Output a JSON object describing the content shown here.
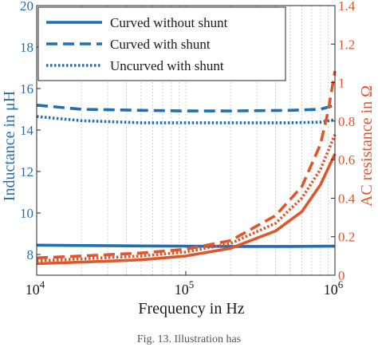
{
  "colors": {
    "left_axis": "#1f6fb4",
    "right_axis": "#e0562a",
    "grid": "#c8c8c8",
    "axis": "#262626"
  },
  "caption": "Fig. 13.   Illustration has",
  "chart_data": {
    "type": "line",
    "xlabel": "Frequency in Hz",
    "ylabel_left": "Inductance in μH",
    "ylabel_right": "AC resistance in Ω",
    "xscale": "log",
    "xlim": [
      10000,
      1000000
    ],
    "ylim_left": [
      7,
      20
    ],
    "ylim_right": [
      0,
      1.4
    ],
    "grid": "x-minor-dotted",
    "x_ticks": [
      {
        "value": 10000,
        "base": "10",
        "exp": "4"
      },
      {
        "value": 100000,
        "base": "10",
        "exp": "5"
      },
      {
        "value": 1000000,
        "base": "10",
        "exp": "6"
      }
    ],
    "y_ticks_left": [
      "8",
      "10",
      "12",
      "14",
      "16",
      "18",
      "20"
    ],
    "y_ticks_right": [
      "0",
      "0.2",
      "0.4",
      "0.6",
      "0.8",
      "1",
      "1.2",
      "1.4"
    ],
    "legend": {
      "placement": "top-left",
      "entries": [
        {
          "label": "Curved without shunt",
          "style": "solid"
        },
        {
          "label": "Curved with shunt",
          "style": "dashed"
        },
        {
          "label": "Uncurved with shunt",
          "style": "dotted"
        }
      ]
    },
    "series": [
      {
        "name": "Curved without shunt",
        "axis": "left",
        "style": "solid",
        "x": [
          10000,
          20000,
          50000,
          100000,
          200000,
          500000,
          1000000
        ],
        "y": [
          8.45,
          8.43,
          8.41,
          8.4,
          8.39,
          8.39,
          8.4
        ]
      },
      {
        "name": "Curved with shunt",
        "axis": "left",
        "style": "dashed",
        "x": [
          10000,
          20000,
          50000,
          100000,
          200000,
          500000,
          800000,
          1000000
        ],
        "y": [
          15.2,
          15.0,
          14.95,
          14.92,
          14.92,
          14.95,
          15.0,
          15.2
        ]
      },
      {
        "name": "Uncurved with shunt",
        "axis": "left",
        "style": "dotted",
        "x": [
          10000,
          20000,
          50000,
          100000,
          200000,
          500000,
          800000,
          1000000
        ],
        "y": [
          14.65,
          14.45,
          14.35,
          14.35,
          14.35,
          14.35,
          14.38,
          14.5
        ]
      },
      {
        "name": "Curved without shunt",
        "axis": "right",
        "style": "solid",
        "x": [
          10000,
          20000,
          50000,
          100000,
          200000,
          400000,
          600000,
          800000,
          1000000
        ],
        "y": [
          0.06,
          0.068,
          0.08,
          0.1,
          0.14,
          0.23,
          0.33,
          0.47,
          0.63
        ]
      },
      {
        "name": "Curved with shunt",
        "axis": "right",
        "style": "dashed",
        "x": [
          10000,
          20000,
          50000,
          100000,
          200000,
          400000,
          600000,
          800000,
          900000,
          1000000
        ],
        "y": [
          0.09,
          0.1,
          0.115,
          0.135,
          0.18,
          0.31,
          0.46,
          0.68,
          0.85,
          1.06
        ]
      },
      {
        "name": "Uncurved with shunt",
        "axis": "right",
        "style": "dotted",
        "x": [
          10000,
          20000,
          50000,
          100000,
          200000,
          400000,
          600000,
          800000,
          1000000
        ],
        "y": [
          0.075,
          0.085,
          0.1,
          0.12,
          0.165,
          0.27,
          0.4,
          0.55,
          0.73
        ]
      }
    ]
  }
}
